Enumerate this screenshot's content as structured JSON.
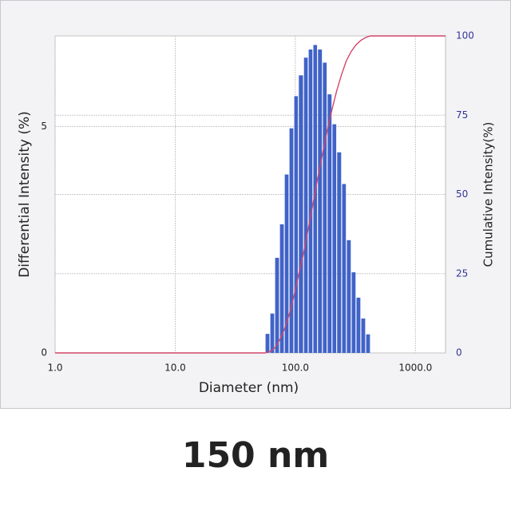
{
  "chart_data": {
    "type": "histogram",
    "x_label": "Diameter (nm)",
    "y_label": "Differential Intensity (%)",
    "y2_label": "Cumulative Intensity(%)",
    "xscale": "log",
    "xlim": [
      1,
      1780
    ],
    "xticks": [
      {
        "value": 1,
        "label": "1.0"
      },
      {
        "value": 10,
        "label": "10.0"
      },
      {
        "value": 100,
        "label": "100.0"
      },
      {
        "value": 1000,
        "label": "1000.0"
      }
    ],
    "ylim": [
      0,
      7
    ],
    "yticks": [
      0,
      5
    ],
    "y2lim": [
      0,
      100
    ],
    "y2ticks": [
      0,
      25,
      50,
      75,
      100
    ],
    "grid": true,
    "color": "#4063c8",
    "bins": [
      56,
      61.4,
      67.3,
      73.8,
      80.9,
      88.6,
      97.1,
      106,
      117,
      128,
      140,
      153,
      168,
      184,
      202,
      221,
      243,
      266,
      292,
      320,
      351,
      385,
      422
    ],
    "values": [
      0.42,
      0.87,
      2.1,
      2.84,
      3.94,
      4.96,
      5.67,
      6.13,
      6.52,
      6.7,
      6.8,
      6.7,
      6.41,
      5.71,
      5.05,
      4.43,
      3.73,
      2.49,
      1.78,
      1.22,
      0.76,
      0.41
    ],
    "line": {
      "axis": "y2",
      "color": "#d4456a",
      "x": [
        1,
        56,
        61.4,
        67.3,
        73.8,
        80.9,
        88.6,
        97.1,
        106,
        117,
        128,
        140,
        153,
        168,
        184,
        202,
        221,
        243,
        266,
        292,
        320,
        351,
        385,
        422,
        1780
      ],
      "values": [
        0,
        0,
        0.5,
        1.5,
        4.0,
        7.3,
        11.9,
        17.7,
        24.3,
        31.4,
        39.1,
        46.9,
        54.8,
        62.6,
        70.1,
        76.8,
        82.7,
        87.9,
        92.2,
        95.1,
        97.2,
        98.6,
        99.5,
        100,
        100
      ]
    }
  },
  "caption": "150 nm"
}
